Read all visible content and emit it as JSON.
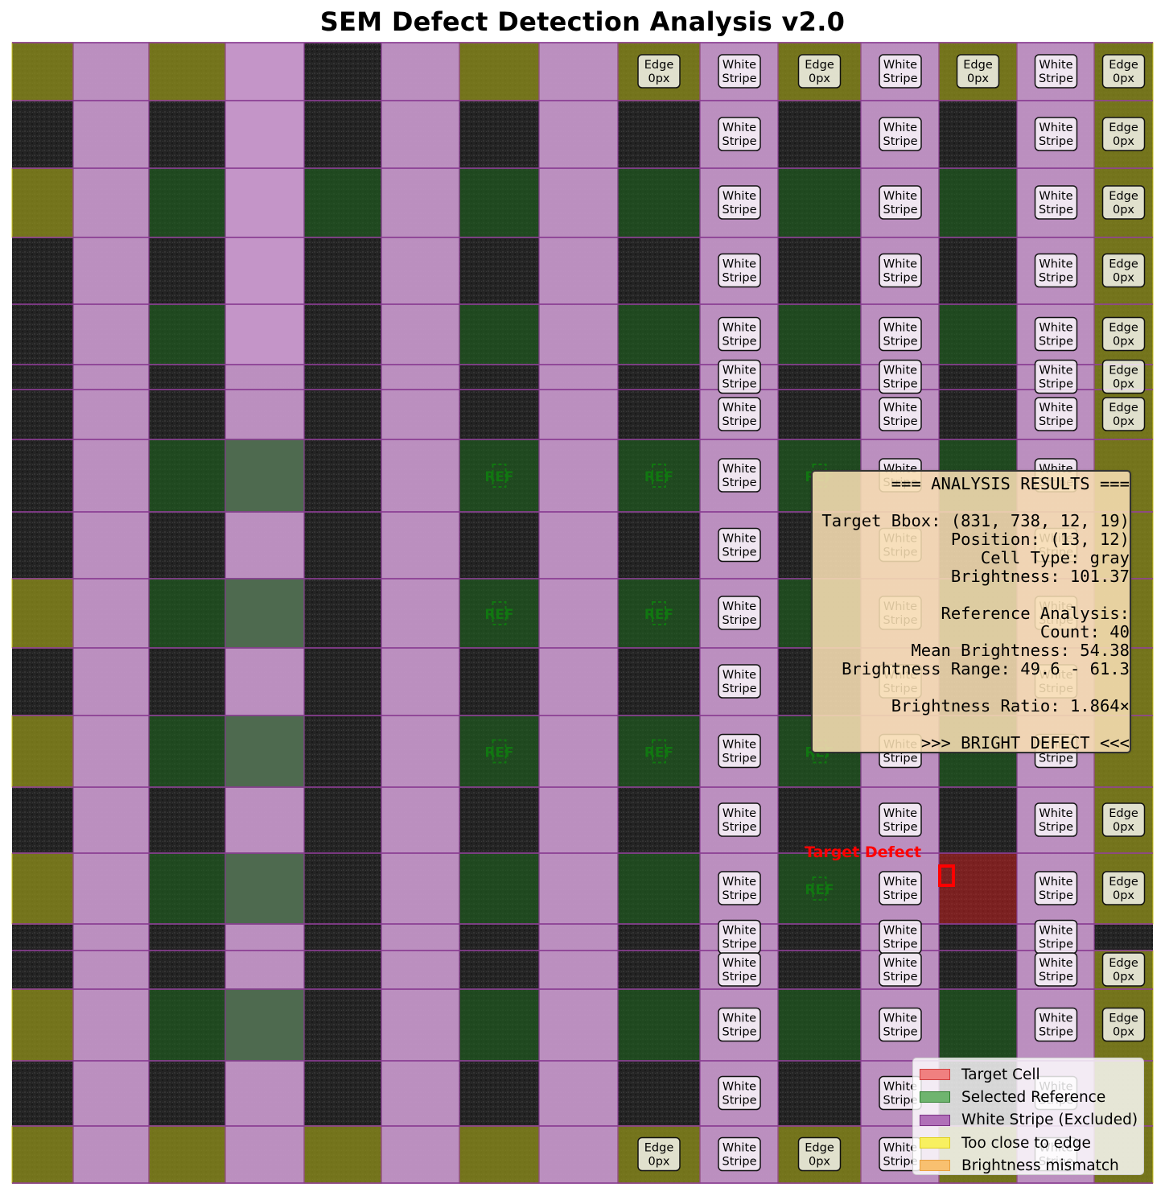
{
  "title": "SEM Defect Detection Analysis v2.0",
  "grid": {
    "col_edges": [
      15,
      91,
      185,
      280,
      378,
      474,
      571,
      670,
      768,
      870,
      967,
      1070,
      1167,
      1264,
      1360,
      1433
    ],
    "row_edges": [
      53,
      125,
      209,
      295,
      378,
      453,
      484,
      546,
      636,
      719,
      805,
      889,
      978,
      1060,
      1148,
      1181,
      1229,
      1318,
      1399,
      1470
    ]
  },
  "colors": {
    "stripe_fill": "#c496c8",
    "stripe_line": "#8a3d92",
    "reference_fill": "#1f5a1f",
    "edge_fill": "#8f8f1a",
    "target_fill": "#c21f1f",
    "target_box": "#ff0000",
    "ref_text": "#117711"
  },
  "cell_labels": {
    "white_stripe_line1": "White",
    "white_stripe_line2": "Stripe",
    "edge_line1": "Edge",
    "edge_line2": "0px",
    "reference": "REF"
  },
  "target_label": "Target Defect",
  "results": {
    "header": "=== ANALYSIS RESULTS ===",
    "bbox": "Target Bbox: (831, 738, 12, 19)",
    "position": "Position: (13, 12)",
    "cell_type": "Cell Type: gray",
    "brightness": "Brightness: 101.37",
    "ref_header": "Reference Analysis:",
    "count": "Count: 40",
    "mean": "Mean Brightness: 54.38",
    "range": "Brightness Range: 49.6 - 61.3",
    "ratio": "Brightness Ratio: 1.864×",
    "verdict": ">>> BRIGHT DEFECT <<<"
  },
  "legend": [
    {
      "label": "Target Cell",
      "fill": "#f08080",
      "stroke": "#d04040"
    },
    {
      "label": "Selected Reference",
      "fill": "#6fb46f",
      "stroke": "#2f7f2f"
    },
    {
      "label": "White Stripe (Excluded)",
      "fill": "#b070b8",
      "stroke": "#7a2f84"
    },
    {
      "label": "Too close to edge",
      "fill": "#f8f060",
      "stroke": "#e0d020"
    },
    {
      "label": "Brightness mismatch",
      "fill": "#f8c070",
      "stroke": "#e8a040"
    }
  ]
}
